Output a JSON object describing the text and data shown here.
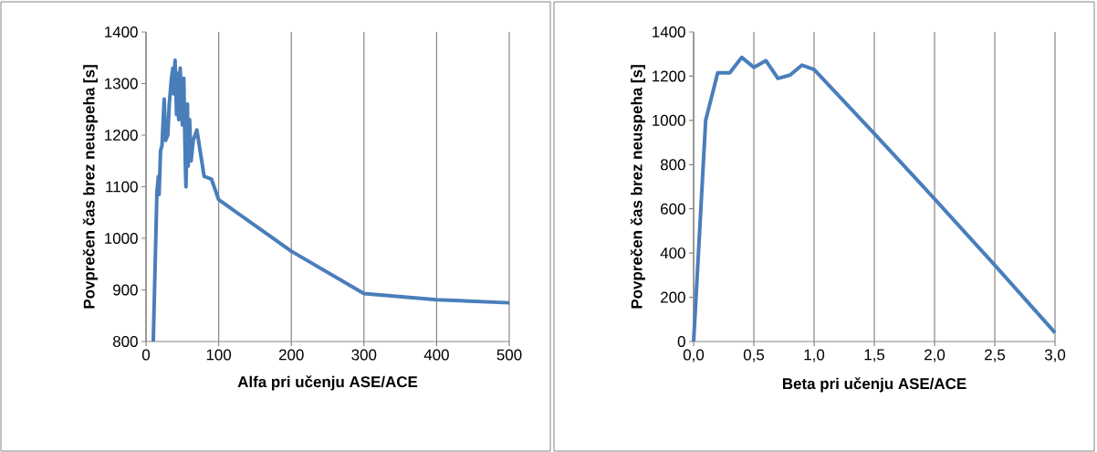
{
  "chart_data": [
    {
      "type": "line",
      "xlabel": "Alfa pri učenju ASE/ACE",
      "ylabel": "Povprečen čas brez neuspeha [s]",
      "x": [
        10,
        15,
        17,
        18,
        20,
        22,
        25,
        27,
        30,
        32,
        35,
        37,
        38,
        40,
        42,
        44,
        45,
        47,
        50,
        52,
        54,
        55,
        57,
        58,
        60,
        62,
        65,
        70,
        80,
        90,
        100,
        200,
        300,
        400,
        500
      ],
      "series": [
        {
          "color": "#4a7ebb",
          "values": [
            800,
            1090,
            1120,
            1085,
            1170,
            1180,
            1270,
            1190,
            1200,
            1260,
            1310,
            1330,
            1280,
            1345,
            1240,
            1320,
            1230,
            1330,
            1220,
            1310,
            1150,
            1100,
            1260,
            1140,
            1230,
            1150,
            1190,
            1210,
            1120,
            1115,
            1075,
            975,
            893,
            881,
            875
          ]
        }
      ],
      "xlim": [
        0,
        500
      ],
      "xticks": [
        0,
        100,
        200,
        300,
        400,
        500
      ],
      "ylim": [
        800,
        1400
      ],
      "yticks": [
        800,
        900,
        1000,
        1100,
        1200,
        1300,
        1400
      ],
      "grid": "x",
      "marker": "none",
      "line_style": "solid"
    },
    {
      "type": "line",
      "xlabel": "Beta pri učenju ASE/ACE",
      "ylabel": "Povprečen čas brez neuspeha [s]",
      "x": [
        0,
        0.1,
        0.2,
        0.3,
        0.4,
        0.5,
        0.6,
        0.7,
        0.8,
        0.9,
        1.0,
        1.5,
        2.0,
        2.5,
        3.0
      ],
      "series": [
        {
          "color": "#4a7ebb",
          "values": [
            0,
            1000,
            1215,
            1215,
            1285,
            1240,
            1270,
            1190,
            1205,
            1250,
            1230,
            940,
            645,
            345,
            40
          ]
        }
      ],
      "xlim": [
        0,
        3
      ],
      "xticks": [
        {
          "value": 0,
          "label": "0,0"
        },
        {
          "value": 0.5,
          "label": "0,5"
        },
        {
          "value": 1,
          "label": "1,0"
        },
        {
          "value": 1.5,
          "label": "1,5"
        },
        {
          "value": 2,
          "label": "2,0"
        },
        {
          "value": 2.5,
          "label": "2,5"
        },
        {
          "value": 3,
          "label": "3,0"
        }
      ],
      "ylim": [
        0,
        1400
      ],
      "yticks": [
        0,
        200,
        400,
        600,
        800,
        1000,
        1200,
        1400
      ],
      "grid": "x",
      "marker": "none",
      "line_style": "solid"
    }
  ]
}
